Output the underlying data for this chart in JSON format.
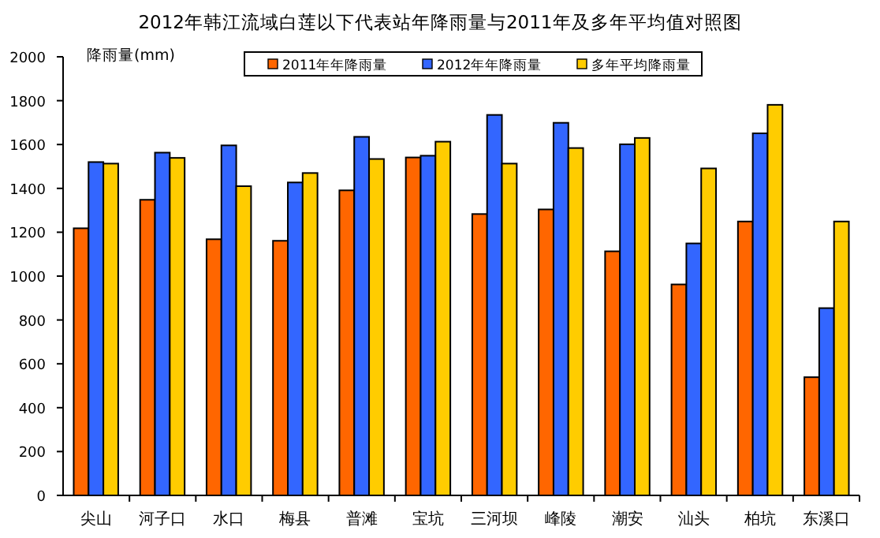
{
  "chart_data": {
    "type": "bar",
    "title": "2012年韩江流域白莲以下代表站年降雨量与2011年及多年平均值对照图",
    "ylabel": "降雨量(mm)",
    "categories": [
      "尖山",
      "河子口",
      "水口",
      "梅县",
      "普滩",
      "宝坑",
      "三河坝",
      "峰陵",
      "潮安",
      "汕头",
      "柏坑",
      "东溪口"
    ],
    "series": [
      {
        "name": "2011年年降雨量",
        "color": "#ff6600",
        "values": [
          1218,
          1348,
          1168,
          1161,
          1391,
          1541,
          1283,
          1304,
          1113,
          962,
          1249,
          539
        ]
      },
      {
        "name": "2012年年降雨量",
        "color": "#3366ff",
        "values": [
          1520,
          1563,
          1596,
          1427,
          1635,
          1549,
          1735,
          1699,
          1601,
          1149,
          1651,
          854
        ]
      },
      {
        "name": "多年平均降雨量",
        "color": "#ffcc00",
        "values": [
          1513,
          1539,
          1410,
          1470,
          1534,
          1613,
          1513,
          1584,
          1630,
          1491,
          1781,
          1249
        ]
      }
    ],
    "ylim": [
      0,
      2000
    ],
    "yticks": [
      0,
      200,
      400,
      600,
      800,
      1000,
      1200,
      1400,
      1600,
      1800,
      2000
    ],
    "grid": false,
    "legend": "top"
  }
}
